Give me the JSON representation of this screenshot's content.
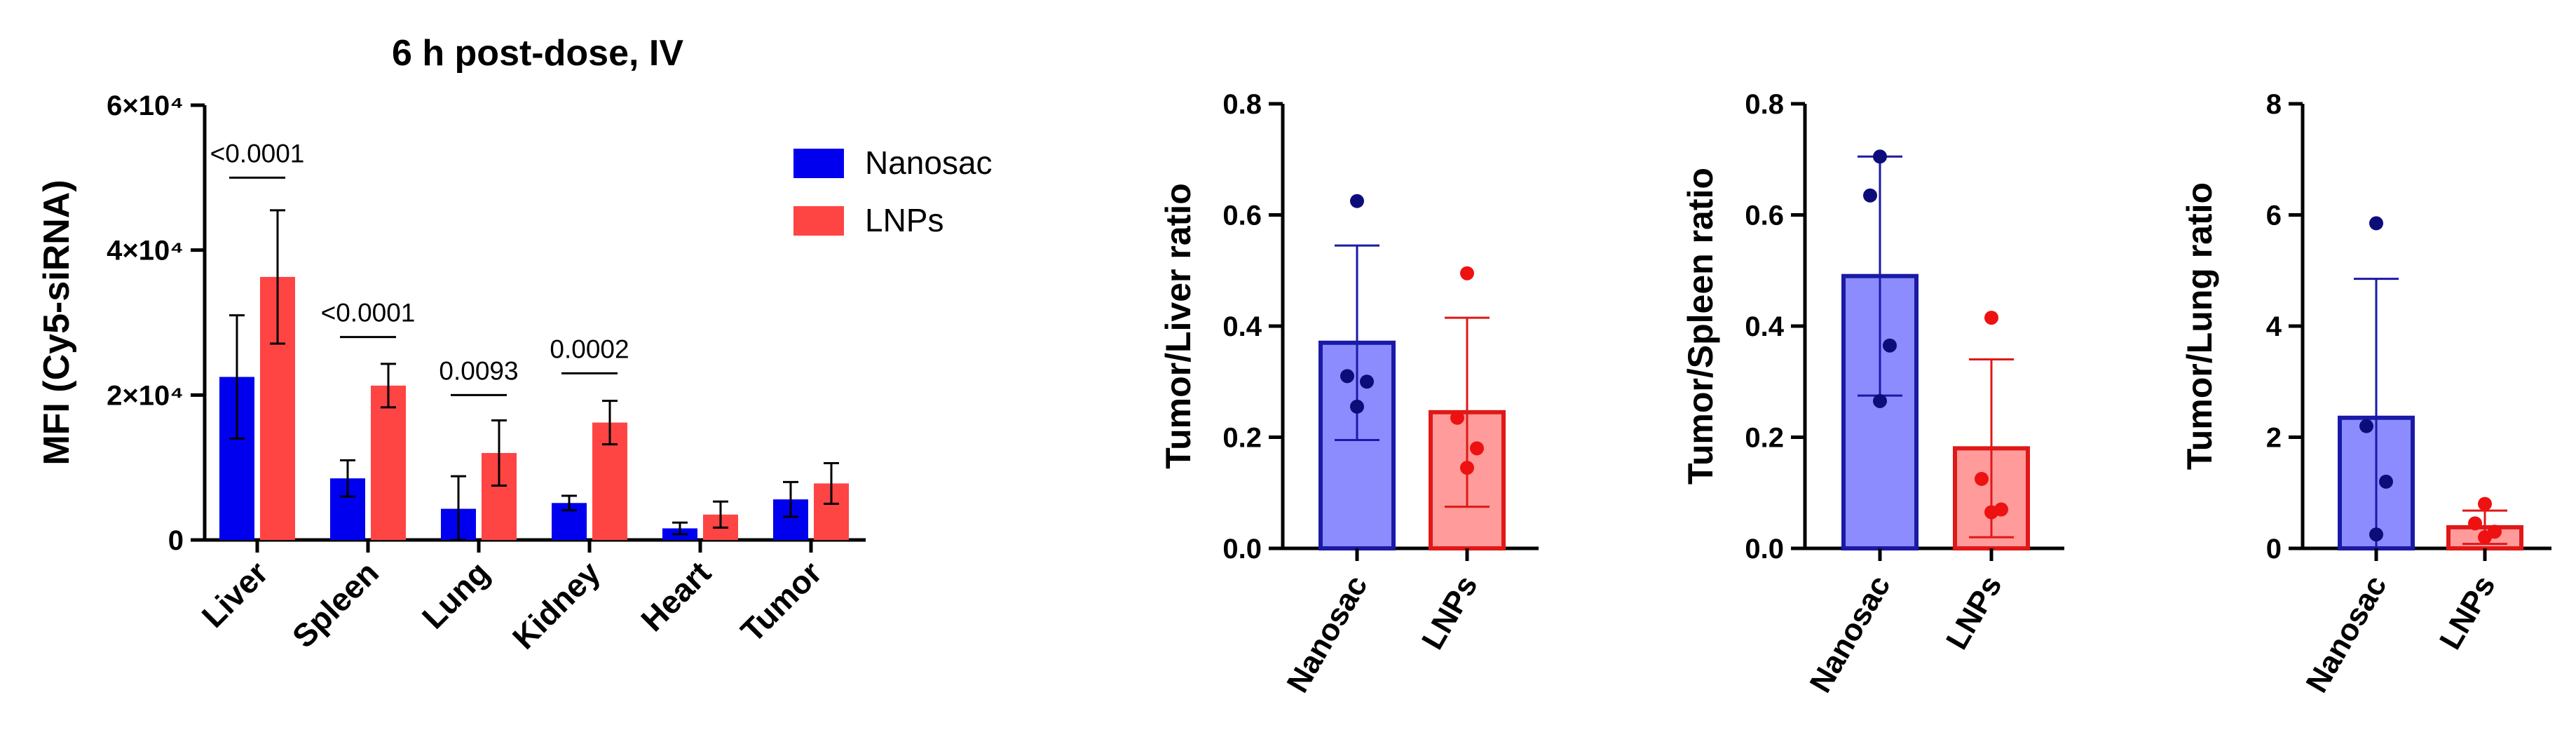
{
  "colors": {
    "nanosac": "#0000ee",
    "lnps": "#ff4444",
    "nanosac_light": "#8c8cff",
    "lnps_light": "#ff9b9b",
    "nanosac_dot": "#0d0d7a",
    "lnps_dot": "#ee1111",
    "nanosac_edge": "#1a1aa6",
    "lnps_edge": "#e01818",
    "axis": "#000000"
  },
  "chart_data": [
    {
      "type": "bar",
      "title": "6 h post-dose, IV",
      "xlabel": "",
      "ylabel": "MFI (Cy5-siRNA)",
      "ylim": [
        0,
        60000
      ],
      "y_ticks": [
        0,
        20000,
        40000,
        60000
      ],
      "y_tick_labels": [
        "0",
        "2×10⁴",
        "4×10⁴",
        "6×10⁴"
      ],
      "categories": [
        "Liver",
        "Spleen",
        "Lung",
        "Kidney",
        "Heart",
        "Tumor"
      ],
      "legend": "top-right",
      "series": [
        {
          "name": "Nanosac",
          "color_key": "nanosac",
          "values": [
            22500,
            8500,
            4300,
            5100,
            1600,
            5600
          ],
          "errors": [
            8500,
            2500,
            4500,
            1000,
            800,
            2400
          ]
        },
        {
          "name": "LNPs",
          "color_key": "lnps",
          "values": [
            36300,
            21300,
            12000,
            16200,
            3500,
            7800
          ],
          "errors": [
            9200,
            3000,
            4500,
            3000,
            1800,
            2800
          ]
        }
      ],
      "annotations": [
        {
          "category": "Liver",
          "text": "<0.0001",
          "y": 50000
        },
        {
          "category": "Spleen",
          "text": "<0.0001",
          "y": 28000
        },
        {
          "category": "Lung",
          "text": "0.0093",
          "y": 20000
        },
        {
          "category": "Kidney",
          "text": "0.0002",
          "y": 23000
        }
      ]
    },
    {
      "type": "bar",
      "title": "",
      "ylabel": "Tumor/Liver ratio",
      "ylim": [
        0,
        0.8
      ],
      "y_ticks": [
        0,
        0.2,
        0.4,
        0.6,
        0.8
      ],
      "y_tick_labels": [
        "0.0",
        "0.2",
        "0.4",
        "0.6",
        "0.8"
      ],
      "categories": [
        "Nanosac",
        "LNPs"
      ],
      "values": [
        0.37,
        0.245
      ],
      "errors": [
        0.175,
        0.17
      ],
      "points": [
        [
          0.625,
          0.31,
          0.3,
          0.255
        ],
        [
          0.495,
          0.235,
          0.18,
          0.145
        ]
      ]
    },
    {
      "type": "bar",
      "title": "",
      "ylabel": "Tumor/Spleen ratio",
      "ylim": [
        0,
        0.8
      ],
      "y_ticks": [
        0,
        0.2,
        0.4,
        0.6,
        0.8
      ],
      "y_tick_labels": [
        "0.0",
        "0.2",
        "0.4",
        "0.6",
        "0.8"
      ],
      "categories": [
        "Nanosac",
        "LNPs"
      ],
      "values": [
        0.49,
        0.18
      ],
      "errors": [
        0.215,
        0.16
      ],
      "points": [
        [
          0.705,
          0.635,
          0.365,
          0.265
        ],
        [
          0.415,
          0.125,
          0.07,
          0.065
        ]
      ]
    },
    {
      "type": "bar",
      "title": "",
      "ylabel": "Tumor/Lung ratio",
      "ylim": [
        0,
        8
      ],
      "y_ticks": [
        0,
        2,
        4,
        6,
        8
      ],
      "y_tick_labels": [
        "0",
        "2",
        "4",
        "6",
        "8"
      ],
      "categories": [
        "Nanosac",
        "LNPs"
      ],
      "values": [
        2.35,
        0.38
      ],
      "errors": [
        2.5,
        0.3
      ],
      "points": [
        [
          5.85,
          2.2,
          1.2,
          0.25
        ],
        [
          0.8,
          0.45,
          0.3,
          0.2
        ]
      ]
    }
  ]
}
